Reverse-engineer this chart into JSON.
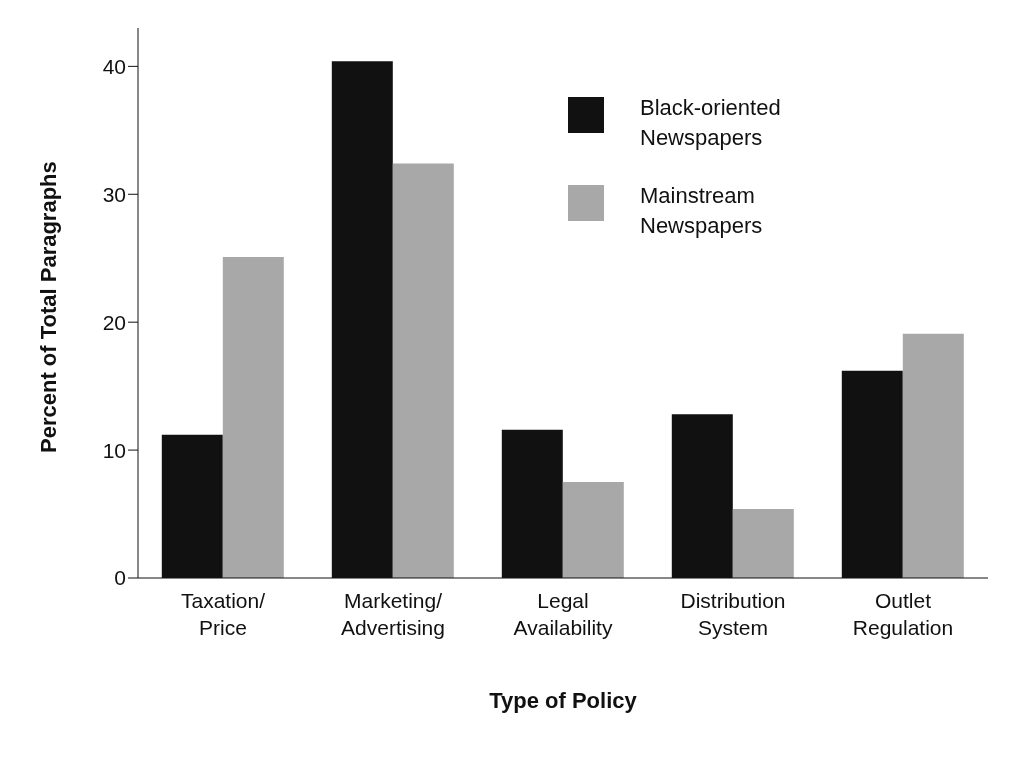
{
  "chart_data": {
    "type": "bar",
    "xlabel": "Type of Policy",
    "ylabel": "Percent of Total Paragraphs",
    "categories": [
      "Taxation/\nPrice",
      "Marketing/\nAdvertising",
      "Legal\nAvailability",
      "Distribution\nSystem",
      "Outlet\nRegulation"
    ],
    "series": [
      {
        "name": "Black-oriented Newspapers",
        "color": "#111111",
        "values": [
          11.2,
          40.4,
          11.6,
          12.8,
          16.2
        ]
      },
      {
        "name": "Mainstream Newspapers",
        "color": "#a8a8a8",
        "values": [
          25.1,
          32.4,
          7.5,
          5.4,
          19.1
        ]
      }
    ],
    "ylim": [
      0,
      43
    ],
    "yticks": [
      0,
      10,
      20,
      30,
      40
    ],
    "legend": "top right"
  }
}
